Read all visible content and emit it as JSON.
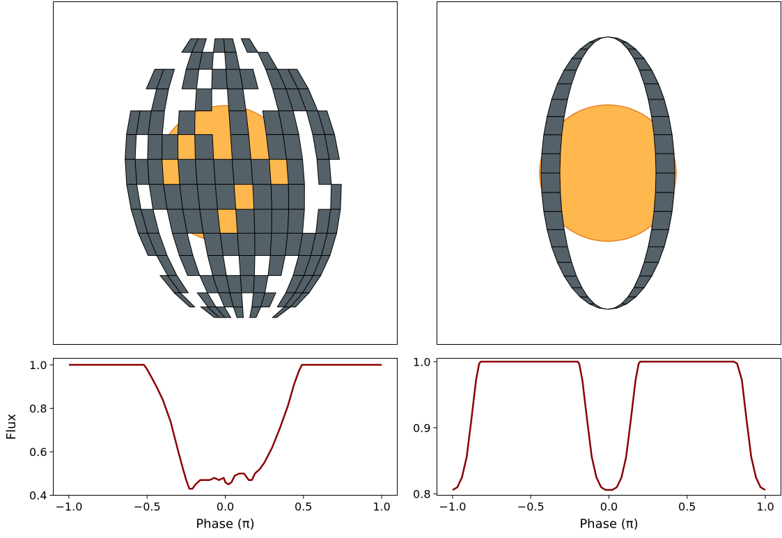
{
  "colors": {
    "star_fill": "#FFB84D",
    "star_edge": "#E8862A",
    "tile_fill": "#556168",
    "tile_edge": "#000000",
    "curve": "#8B0000"
  },
  "chart_data": [
    {
      "type": "line",
      "title": "",
      "xlabel": "Phase (π)",
      "ylabel": "Flux",
      "xlim": [
        -1.1,
        1.1
      ],
      "ylim": [
        0.4,
        1.03
      ],
      "xticks": [
        -1.0,
        -0.5,
        0.0,
        0.5,
        1.0
      ],
      "xtick_labels": [
        "−1.0",
        "−0.5",
        "0.0",
        "0.5",
        "1.0"
      ],
      "yticks": [
        0.4,
        0.6,
        0.8,
        1.0
      ],
      "ytick_labels": [
        "0.4",
        "0.6",
        "0.8",
        "1.0"
      ],
      "grid": false,
      "series": [
        {
          "x": [
            -1.0,
            -0.7,
            -0.52,
            -0.5,
            -0.47,
            -0.44,
            -0.4,
            -0.35,
            -0.3,
            -0.27,
            -0.25,
            -0.23,
            -0.21,
            -0.19,
            -0.16,
            -0.13,
            -0.1,
            -0.07,
            -0.04,
            -0.01,
            0.0,
            0.02,
            0.04,
            0.06,
            0.09,
            0.12,
            0.15,
            0.17,
            0.19,
            0.22,
            0.25,
            0.3,
            0.35,
            0.4,
            0.44,
            0.47,
            0.49,
            0.52,
            0.7,
            1.0
          ],
          "y": [
            1.0,
            1.0,
            1.0,
            0.98,
            0.94,
            0.9,
            0.84,
            0.74,
            0.6,
            0.52,
            0.47,
            0.43,
            0.43,
            0.45,
            0.47,
            0.47,
            0.47,
            0.48,
            0.47,
            0.48,
            0.46,
            0.45,
            0.46,
            0.49,
            0.5,
            0.5,
            0.47,
            0.47,
            0.5,
            0.52,
            0.55,
            0.62,
            0.71,
            0.81,
            0.91,
            0.97,
            1.0,
            1.0,
            1.0,
            1.0
          ]
        }
      ]
    },
    {
      "type": "line",
      "title": "",
      "xlabel": "Phase (π)",
      "ylabel": "",
      "xlim": [
        -1.1,
        1.1
      ],
      "ylim": [
        0.798,
        1.005
      ],
      "xticks": [
        -1.0,
        -0.5,
        0.0,
        0.5,
        1.0
      ],
      "xtick_labels": [
        "−1.0",
        "−0.5",
        "0.0",
        "0.5",
        "1.0"
      ],
      "yticks": [
        0.8,
        0.9,
        1.0
      ],
      "ytick_labels": [
        "0.8",
        "0.9",
        "1.0"
      ],
      "grid": false,
      "series": [
        {
          "x": [
            -1.0,
            -0.97,
            -0.94,
            -0.91,
            -0.88,
            -0.85,
            -0.83,
            -0.82,
            -0.6,
            -0.2,
            -0.19,
            -0.17,
            -0.14,
            -0.11,
            -0.08,
            -0.05,
            -0.02,
            0.0,
            0.02,
            0.05,
            0.08,
            0.11,
            0.14,
            0.17,
            0.19,
            0.2,
            0.6,
            0.8,
            0.82,
            0.85,
            0.88,
            0.91,
            0.94,
            0.97,
            1.0
          ],
          "y": [
            0.806,
            0.81,
            0.825,
            0.856,
            0.912,
            0.972,
            0.997,
            1.0,
            1.0,
            1.0,
            0.997,
            0.972,
            0.912,
            0.856,
            0.825,
            0.81,
            0.806,
            0.806,
            0.806,
            0.81,
            0.825,
            0.856,
            0.912,
            0.972,
            0.997,
            1.0,
            1.0,
            1.0,
            0.997,
            0.972,
            0.912,
            0.856,
            0.825,
            0.81,
            0.806
          ]
        }
      ]
    }
  ]
}
